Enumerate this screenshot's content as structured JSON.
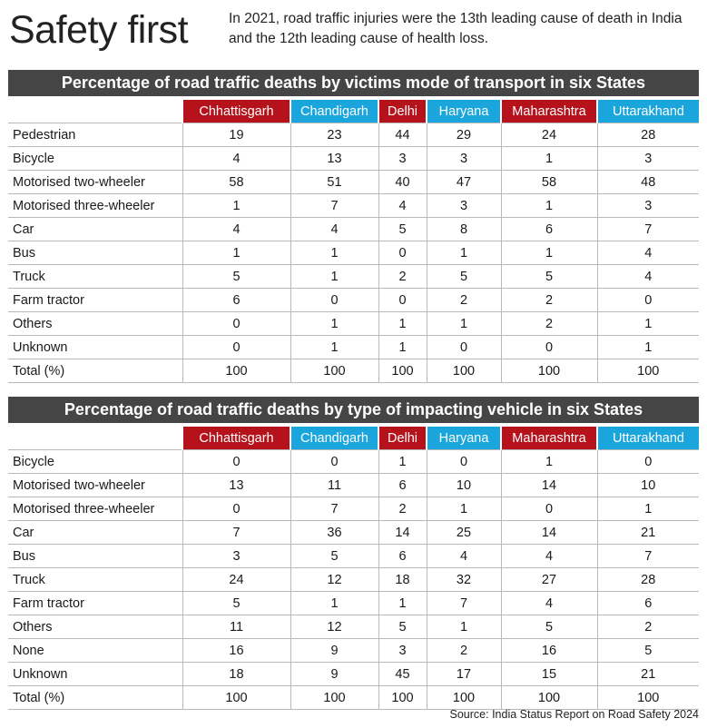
{
  "header": {
    "title": "Safety first",
    "subtitle": "In 2021, road traffic injuries were the 13th leading cause of death in India and the 12th leading cause of health loss."
  },
  "colors": {
    "red_header": "#b5121b",
    "blue_header": "#1aa6dd",
    "title_bar": "#454545"
  },
  "states": [
    {
      "name": "Chhattisgarh",
      "color": "#b5121b"
    },
    {
      "name": "Chandigarh",
      "color": "#1aa6dd"
    },
    {
      "name": "Delhi",
      "color": "#b5121b"
    },
    {
      "name": "Haryana",
      "color": "#1aa6dd"
    },
    {
      "name": "Maharashtra",
      "color": "#b5121b"
    },
    {
      "name": "Uttarakhand",
      "color": "#1aa6dd"
    }
  ],
  "chart_data": [
    {
      "type": "table",
      "title": "Percentage of road traffic deaths by victims mode of transport in six States",
      "columns": [
        "Chhattisgarh",
        "Chandigarh",
        "Delhi",
        "Haryana",
        "Maharashtra",
        "Uttarakhand"
      ],
      "rows": [
        {
          "label": "Pedestrian",
          "values": [
            "19",
            "23",
            "44",
            "29",
            "24",
            "28"
          ]
        },
        {
          "label": "Bicycle",
          "values": [
            "4",
            "13",
            "3",
            "3",
            "1",
            "3"
          ]
        },
        {
          "label": "Motorised two-wheeler",
          "values": [
            "58",
            "51",
            "40",
            "47",
            "58",
            "48"
          ]
        },
        {
          "label": "Motorised three-wheeler",
          "values": [
            "1",
            "7",
            "4",
            "3",
            "1",
            "3"
          ]
        },
        {
          "label": "Car",
          "values": [
            "4",
            "4",
            "5",
            "8",
            "6",
            "7"
          ]
        },
        {
          "label": "Bus",
          "values": [
            "1",
            "1",
            "0",
            "1",
            "1",
            "4"
          ]
        },
        {
          "label": "Truck",
          "values": [
            "5",
            "1",
            "2",
            "5",
            "5",
            "4"
          ]
        },
        {
          "label": "Farm tractor",
          "values": [
            "6",
            "0",
            "0",
            "2",
            "2",
            "0"
          ]
        },
        {
          "label": "Others",
          "values": [
            "0",
            "1",
            "1",
            "1",
            "2",
            "1"
          ]
        },
        {
          "label": "Unknown",
          "values": [
            "0",
            "1",
            "1",
            "0",
            "0",
            "1"
          ]
        },
        {
          "label": "Total (%)",
          "values": [
            "100",
            "100",
            "100",
            "100",
            "100",
            "100"
          ]
        }
      ]
    },
    {
      "type": "table",
      "title": "Percentage of road traffic deaths by type of impacting vehicle in six States",
      "columns": [
        "Chhattisgarh",
        "Chandigarh",
        "Delhi",
        "Haryana",
        "Maharashtra",
        "Uttarakhand"
      ],
      "rows": [
        {
          "label": "Bicycle",
          "values": [
            "0",
            "0",
            "1",
            "0",
            "1",
            "0"
          ]
        },
        {
          "label": "Motorised two-wheeler",
          "values": [
            "13",
            "11",
            "6",
            "10",
            "14",
            "10"
          ]
        },
        {
          "label": "Motorised three-wheeler",
          "values": [
            "0",
            "7",
            "2",
            "1",
            "0",
            "1"
          ]
        },
        {
          "label": "Car",
          "values": [
            "7",
            "36",
            "14",
            "25",
            "14",
            "21"
          ]
        },
        {
          "label": "Bus",
          "values": [
            "3",
            "5",
            "6",
            "4",
            "4",
            "7"
          ]
        },
        {
          "label": "Truck",
          "values": [
            "24",
            "12",
            "18",
            "32",
            "27",
            "28"
          ]
        },
        {
          "label": "Farm tractor",
          "values": [
            "5",
            "1",
            "1",
            "7",
            "4",
            "6"
          ]
        },
        {
          "label": "Others",
          "values": [
            "11",
            "12",
            "5",
            "1",
            "5",
            "2"
          ]
        },
        {
          "label": "None",
          "values": [
            "16",
            "9",
            "3",
            "2",
            "16",
            "5"
          ]
        },
        {
          "label": "Unknown",
          "values": [
            "18",
            "9",
            "45",
            "17",
            "15",
            "21"
          ]
        },
        {
          "label": "Total (%)",
          "values": [
            "100",
            "100",
            "100",
            "100",
            "100",
            "100"
          ]
        }
      ]
    }
  ],
  "footer": {
    "source": "Source: India Status Report on Road Safety 2024"
  }
}
